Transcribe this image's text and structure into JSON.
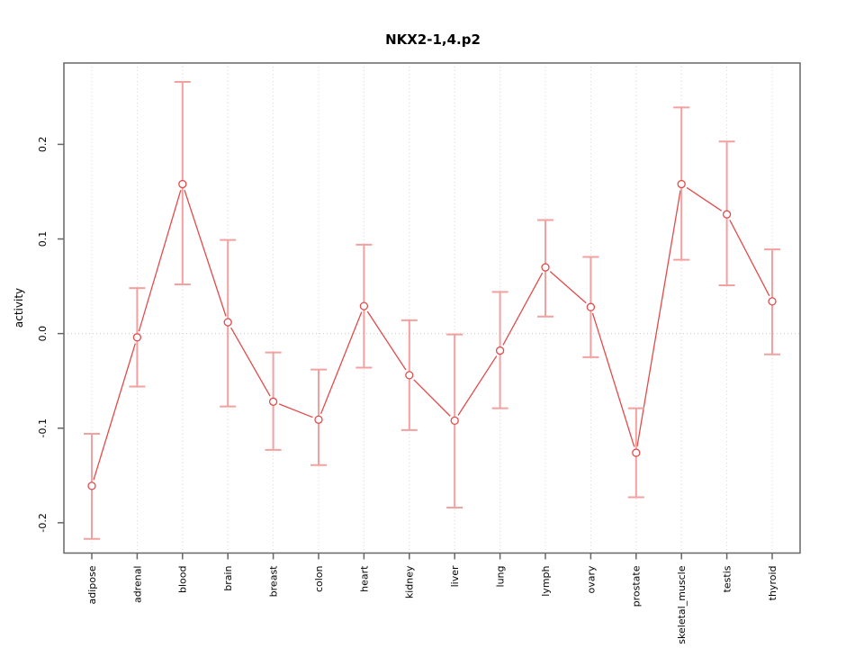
{
  "chart_data": {
    "type": "line",
    "title": "NKX2-1,4.p2",
    "ylabel": "activity",
    "xlabel": "",
    "categories": [
      "adipose",
      "adrenal",
      "blood",
      "brain",
      "breast",
      "colon",
      "heart",
      "kidney",
      "liver",
      "lung",
      "lymph",
      "ovary",
      "prostate",
      "skeletal_muscle",
      "testis",
      "thyroid"
    ],
    "series": [
      {
        "name": "activity",
        "values": [
          -0.161,
          -0.004,
          0.158,
          0.012,
          -0.072,
          -0.091,
          0.029,
          -0.044,
          -0.092,
          -0.018,
          0.07,
          0.028,
          -0.126,
          0.158,
          0.126,
          0.034
        ],
        "ci_low": [
          -0.217,
          -0.056,
          0.052,
          -0.077,
          -0.123,
          -0.139,
          -0.036,
          -0.102,
          -0.184,
          -0.079,
          0.018,
          -0.025,
          -0.173,
          0.078,
          0.051,
          -0.022
        ],
        "ci_high": [
          -0.106,
          0.048,
          0.266,
          0.099,
          -0.02,
          -0.038,
          0.094,
          0.014,
          -0.001,
          0.044,
          0.12,
          0.081,
          -0.079,
          0.239,
          0.203,
          0.089
        ]
      }
    ],
    "yticks": [
      -0.2,
      -0.1,
      0.0,
      0.1,
      0.2
    ],
    "ytick_labels": [
      "-0.2",
      "-0.1",
      "0.0",
      "0.1",
      "0.2"
    ],
    "ylim": [
      -0.232,
      0.286
    ],
    "grid": {
      "vertical": "dotted-per-category",
      "horizontal": "dotted-at-zero"
    },
    "legend": "none",
    "colors": {
      "errorbar": "#f2a0a0",
      "line": "#e24b4b",
      "point_stroke": "#e24b4b",
      "point_fill": "#ffffff",
      "grid": "#d8d8d8",
      "zero_line": "#cccccc",
      "axis": "#666666",
      "text": "#000000"
    }
  }
}
